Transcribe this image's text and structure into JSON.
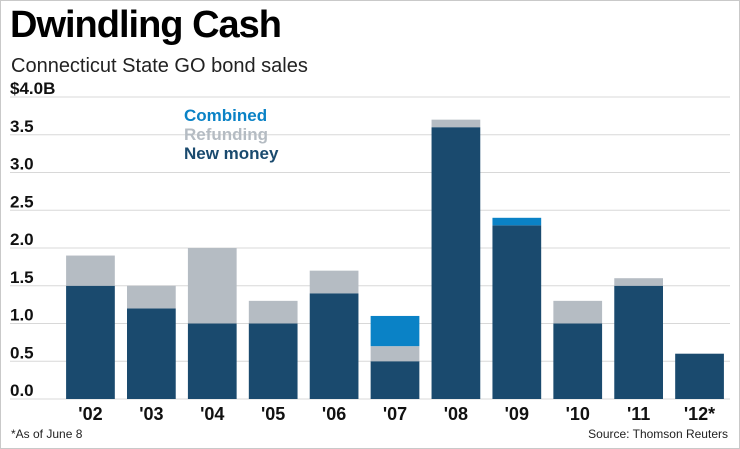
{
  "header": {
    "title": "Dwindling Cash",
    "subtitle": "Connecticut State GO bond sales"
  },
  "footer": {
    "note": "*As of June 8",
    "source": "Source: Thomson Reuters"
  },
  "colors": {
    "new_money": "#1a4a6e",
    "refunding": "#b5bcc3",
    "combined": "#0a82c6",
    "grid": "#d8d8d8"
  },
  "chart_data": {
    "type": "bar",
    "stacked": true,
    "title": "Dwindling Cash",
    "subtitle": "Connecticut State GO bond sales",
    "xlabel": "",
    "ylabel": "",
    "ylim": [
      0,
      4.0
    ],
    "yticks": [
      "0.0",
      "0.5",
      "1.0",
      "1.5",
      "2.0",
      "2.5",
      "3.0",
      "3.5",
      "$4.0B"
    ],
    "grid": true,
    "legend_position": "top-left",
    "categories": [
      "'02",
      "'03",
      "'04",
      "'05",
      "'06",
      "'07",
      "'08",
      "'09",
      "'10",
      "'11",
      "'12*"
    ],
    "series": [
      {
        "name": "New money",
        "color": "#1a4a6e",
        "values": [
          1.5,
          1.2,
          1.0,
          1.0,
          1.4,
          0.5,
          3.6,
          2.3,
          1.0,
          1.5,
          0.6
        ]
      },
      {
        "name": "Refunding",
        "color": "#b5bcc3",
        "values": [
          0.4,
          0.3,
          1.0,
          0.3,
          0.3,
          0.2,
          0.1,
          0.0,
          0.3,
          0.1,
          0.0
        ]
      },
      {
        "name": "Combined",
        "color": "#0a82c6",
        "values": [
          0.0,
          0.0,
          0.0,
          0.0,
          0.0,
          0.4,
          0.0,
          0.1,
          0.0,
          0.0,
          0.0
        ]
      }
    ],
    "legend": [
      "Combined",
      "Refunding",
      "New money"
    ]
  }
}
